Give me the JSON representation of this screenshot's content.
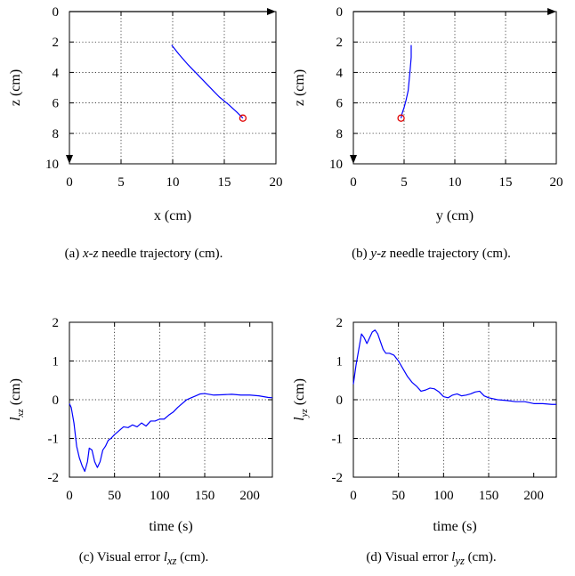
{
  "chart_data": [
    {
      "type": "line",
      "xlabel": "x (cm)",
      "ylabel": "z (cm)",
      "xlim": [
        0,
        20
      ],
      "ylim": [
        0,
        10
      ],
      "y_inverted": true,
      "xticks": [
        "0",
        "5",
        "10",
        "15",
        "20"
      ],
      "yticks": [
        "0",
        "2",
        "4",
        "6",
        "8",
        "10"
      ],
      "grid": true,
      "series": [
        {
          "color": "#0000ff",
          "x": [
            9.9,
            10.6,
            11.5,
            12.5,
            13.5,
            14.5,
            15.4,
            16.2,
            16.8
          ],
          "y": [
            2.2,
            2.8,
            3.5,
            4.2,
            4.9,
            5.6,
            6.1,
            6.6,
            7.0
          ]
        }
      ],
      "markers": [
        {
          "x": 16.8,
          "y": 7.0,
          "color": "#e00000",
          "shape": "circle"
        }
      ],
      "caption": {
        "label": "(a) ",
        "italic": "x-z",
        "rest": " needle trajectory (cm)."
      }
    },
    {
      "type": "line",
      "xlabel": "y (cm)",
      "ylabel": "z (cm)",
      "xlim": [
        0,
        20
      ],
      "ylim": [
        0,
        10
      ],
      "y_inverted": true,
      "xticks": [
        "0",
        "5",
        "10",
        "15",
        "20"
      ],
      "yticks": [
        "0",
        "2",
        "4",
        "6",
        "8",
        "10"
      ],
      "grid": true,
      "series": [
        {
          "color": "#0000ff",
          "x": [
            5.7,
            5.7,
            5.6,
            5.5,
            5.4,
            5.2,
            5.0,
            4.8,
            4.7
          ],
          "y": [
            2.2,
            3.0,
            3.8,
            4.5,
            5.2,
            5.8,
            6.3,
            6.7,
            7.0
          ]
        }
      ],
      "markers": [
        {
          "x": 4.7,
          "y": 7.0,
          "color": "#e00000",
          "shape": "circle"
        }
      ],
      "caption": {
        "label": "(b) ",
        "italic": "y-z",
        "rest": " needle trajectory (cm)."
      }
    },
    {
      "type": "line",
      "xlabel": "time (s)",
      "ylabel_main": "l",
      "ylabel_sub": "xz",
      "ylabel_unit": " (cm)",
      "xlim": [
        0,
        225
      ],
      "ylim": [
        -2,
        2
      ],
      "xticks": [
        "0",
        "50",
        "100",
        "150",
        "200"
      ],
      "yticks": [
        "2",
        "1",
        "0",
        "-1",
        "-2"
      ],
      "grid": true,
      "series": [
        {
          "color": "#0000ff",
          "x": [
            0,
            2,
            5,
            8,
            11,
            14,
            17,
            20,
            22,
            25,
            28,
            31,
            34,
            37,
            40,
            43,
            46,
            50,
            55,
            60,
            65,
            70,
            75,
            80,
            85,
            90,
            95,
            100,
            105,
            110,
            115,
            120,
            125,
            130,
            135,
            140,
            145,
            150,
            160,
            170,
            180,
            190,
            200,
            210,
            220,
            225
          ],
          "y": [
            -0.1,
            -0.2,
            -0.6,
            -1.2,
            -1.5,
            -1.7,
            -1.85,
            -1.6,
            -1.25,
            -1.3,
            -1.6,
            -1.75,
            -1.6,
            -1.3,
            -1.2,
            -1.05,
            -1.0,
            -0.9,
            -0.8,
            -0.7,
            -0.72,
            -0.65,
            -0.7,
            -0.6,
            -0.68,
            -0.55,
            -0.55,
            -0.5,
            -0.5,
            -0.4,
            -0.32,
            -0.2,
            -0.1,
            0.0,
            0.05,
            0.1,
            0.15,
            0.16,
            0.12,
            0.13,
            0.14,
            0.12,
            0.12,
            0.1,
            0.06,
            0.05
          ]
        }
      ],
      "caption": {
        "label": "(c) Visual error ",
        "italic": "l",
        "sub": "xz",
        "rest": " (cm)."
      }
    },
    {
      "type": "line",
      "xlabel": "time (s)",
      "ylabel_main": "l",
      "ylabel_sub": "yz",
      "ylabel_unit": " (cm)",
      "xlim": [
        0,
        225
      ],
      "ylim": [
        -2,
        2
      ],
      "xticks": [
        "0",
        "50",
        "100",
        "150",
        "200"
      ],
      "yticks": [
        "2",
        "1",
        "0",
        "-1",
        "-2"
      ],
      "grid": true,
      "series": [
        {
          "color": "#0000ff",
          "x": [
            0,
            3,
            6,
            9,
            12,
            15,
            18,
            21,
            24,
            27,
            30,
            33,
            36,
            40,
            45,
            50,
            55,
            60,
            65,
            70,
            75,
            80,
            85,
            90,
            95,
            100,
            105,
            110,
            115,
            120,
            125,
            130,
            135,
            140,
            145,
            150,
            160,
            170,
            180,
            190,
            200,
            210,
            220,
            225
          ],
          "y": [
            0.4,
            0.9,
            1.3,
            1.7,
            1.6,
            1.45,
            1.6,
            1.75,
            1.8,
            1.7,
            1.5,
            1.3,
            1.2,
            1.2,
            1.15,
            1.0,
            0.8,
            0.6,
            0.45,
            0.35,
            0.22,
            0.25,
            0.3,
            0.28,
            0.2,
            0.08,
            0.05,
            0.12,
            0.15,
            0.1,
            0.12,
            0.15,
            0.2,
            0.22,
            0.1,
            0.05,
            0.0,
            -0.02,
            -0.05,
            -0.05,
            -0.1,
            -0.1,
            -0.12,
            -0.12
          ]
        }
      ],
      "caption": {
        "label": "(d) Visual error ",
        "italic": "l",
        "sub": "yz",
        "rest": " (cm)."
      }
    }
  ]
}
